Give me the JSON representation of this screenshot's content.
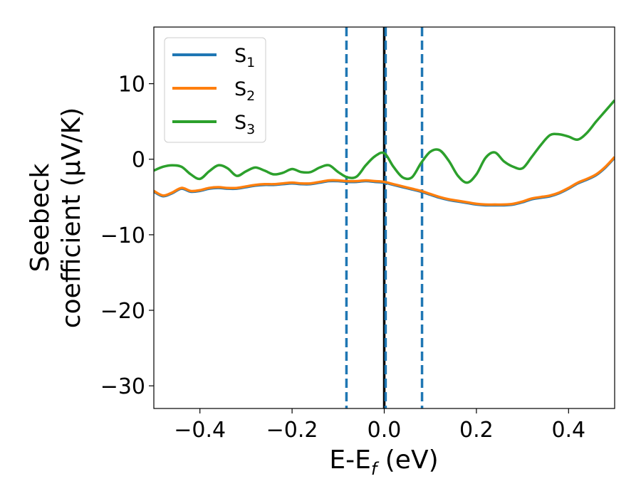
{
  "chart_data": {
    "type": "line",
    "xlabel_main": "E-E",
    "xlabel_sub": "f",
    "xlabel_tail": " (eV)",
    "ylabel_line1": "Seebeck",
    "ylabel_line2": "coefficient  (μV/K)",
    "xlim": [
      -0.5,
      0.5
    ],
    "ylim": [
      -33,
      17.5
    ],
    "xticks": [
      -0.4,
      -0.2,
      0.0,
      0.2,
      0.4
    ],
    "xtick_labels": [
      "−0.4",
      "−0.2",
      "0.0",
      "0.2",
      "0.4"
    ],
    "yticks": [
      10,
      0,
      -10,
      -20,
      -30
    ],
    "ytick_labels": [
      "10",
      "0",
      "−10",
      "−20",
      "−30"
    ],
    "grid": false,
    "legend_position": "top-left",
    "series": [
      {
        "name": "S",
        "sub": "1",
        "color": "#1f77b4",
        "x": [
          -0.5,
          -0.48,
          -0.46,
          -0.44,
          -0.42,
          -0.4,
          -0.38,
          -0.36,
          -0.34,
          -0.32,
          -0.3,
          -0.28,
          -0.26,
          -0.24,
          -0.22,
          -0.2,
          -0.18,
          -0.16,
          -0.14,
          -0.12,
          -0.1,
          -0.08,
          -0.06,
          -0.04,
          -0.02,
          0.0,
          0.02,
          0.04,
          0.06,
          0.08,
          0.1,
          0.12,
          0.14,
          0.16,
          0.18,
          0.2,
          0.22,
          0.24,
          0.26,
          0.28,
          0.3,
          0.32,
          0.34,
          0.36,
          0.38,
          0.4,
          0.42,
          0.44,
          0.46,
          0.48,
          0.5
        ],
        "y": [
          -4.3,
          -4.9,
          -4.5,
          -3.9,
          -4.3,
          -4.2,
          -3.9,
          -3.8,
          -3.9,
          -3.9,
          -3.7,
          -3.5,
          -3.4,
          -3.4,
          -3.3,
          -3.2,
          -3.3,
          -3.3,
          -3.1,
          -2.9,
          -2.9,
          -3.0,
          -3.0,
          -2.9,
          -3.0,
          -3.1,
          -3.4,
          -3.7,
          -4.0,
          -4.3,
          -4.7,
          -5.1,
          -5.4,
          -5.6,
          -5.8,
          -6.0,
          -6.1,
          -6.1,
          -6.1,
          -6.0,
          -5.7,
          -5.3,
          -5.1,
          -4.9,
          -4.5,
          -3.9,
          -3.2,
          -2.7,
          -2.1,
          -1.1,
          0.2
        ]
      },
      {
        "name": "S",
        "sub": "2",
        "color": "#ff7f0e",
        "x": [
          -0.5,
          -0.48,
          -0.46,
          -0.44,
          -0.42,
          -0.4,
          -0.38,
          -0.36,
          -0.34,
          -0.32,
          -0.3,
          -0.28,
          -0.26,
          -0.24,
          -0.22,
          -0.2,
          -0.18,
          -0.16,
          -0.14,
          -0.12,
          -0.1,
          -0.08,
          -0.06,
          -0.04,
          -0.02,
          0.0,
          0.02,
          0.04,
          0.06,
          0.08,
          0.1,
          0.12,
          0.14,
          0.16,
          0.18,
          0.2,
          0.22,
          0.24,
          0.26,
          0.28,
          0.3,
          0.32,
          0.34,
          0.36,
          0.38,
          0.4,
          0.42,
          0.44,
          0.46,
          0.48,
          0.5
        ],
        "y": [
          -4.2,
          -4.8,
          -4.4,
          -3.8,
          -4.2,
          -4.1,
          -3.8,
          -3.7,
          -3.8,
          -3.8,
          -3.6,
          -3.4,
          -3.3,
          -3.3,
          -3.2,
          -3.1,
          -3.2,
          -3.2,
          -3.0,
          -2.8,
          -2.8,
          -2.9,
          -2.9,
          -2.8,
          -2.9,
          -3.0,
          -3.3,
          -3.6,
          -3.9,
          -4.2,
          -4.6,
          -5.0,
          -5.3,
          -5.5,
          -5.7,
          -5.9,
          -6.0,
          -6.0,
          -6.0,
          -5.9,
          -5.6,
          -5.2,
          -5.0,
          -4.8,
          -4.4,
          -3.8,
          -3.1,
          -2.6,
          -2.0,
          -1.0,
          0.3
        ]
      },
      {
        "name": "S",
        "sub": "3",
        "color": "#2ca02c",
        "x": [
          -0.5,
          -0.48,
          -0.46,
          -0.44,
          -0.42,
          -0.4,
          -0.38,
          -0.36,
          -0.34,
          -0.32,
          -0.3,
          -0.28,
          -0.26,
          -0.24,
          -0.22,
          -0.2,
          -0.18,
          -0.16,
          -0.14,
          -0.12,
          -0.1,
          -0.08,
          -0.06,
          -0.04,
          -0.02,
          0.0,
          0.02,
          0.04,
          0.06,
          0.08,
          0.1,
          0.12,
          0.14,
          0.16,
          0.18,
          0.2,
          0.22,
          0.24,
          0.26,
          0.28,
          0.3,
          0.32,
          0.34,
          0.36,
          0.38,
          0.4,
          0.42,
          0.44,
          0.46,
          0.48,
          0.5
        ],
        "y": [
          -1.5,
          -1.0,
          -0.8,
          -1.0,
          -2.0,
          -2.6,
          -1.6,
          -0.8,
          -1.2,
          -2.2,
          -1.6,
          -1.1,
          -1.5,
          -2.0,
          -1.8,
          -1.3,
          -1.7,
          -1.7,
          -1.1,
          -0.8,
          -1.7,
          -2.4,
          -2.3,
          -0.8,
          0.4,
          0.8,
          -1.0,
          -2.4,
          -2.4,
          -0.5,
          1.0,
          1.2,
          -0.2,
          -2.2,
          -3.1,
          -2.0,
          0.2,
          0.9,
          -0.3,
          -1.0,
          -1.2,
          0.3,
          1.9,
          3.2,
          3.3,
          3.0,
          2.6,
          3.5,
          5.0,
          6.4,
          7.8
        ]
      }
    ],
    "vlines": [
      {
        "x": -0.082,
        "style": "dashed",
        "color": "#1f77b4"
      },
      {
        "x": 0.082,
        "style": "dashed",
        "color": "#1f77b4"
      },
      {
        "x": 0.0,
        "style": "solid",
        "color": "#000000"
      },
      {
        "x": 0.003,
        "style": "dashed",
        "color": "#1f77b4"
      }
    ]
  }
}
